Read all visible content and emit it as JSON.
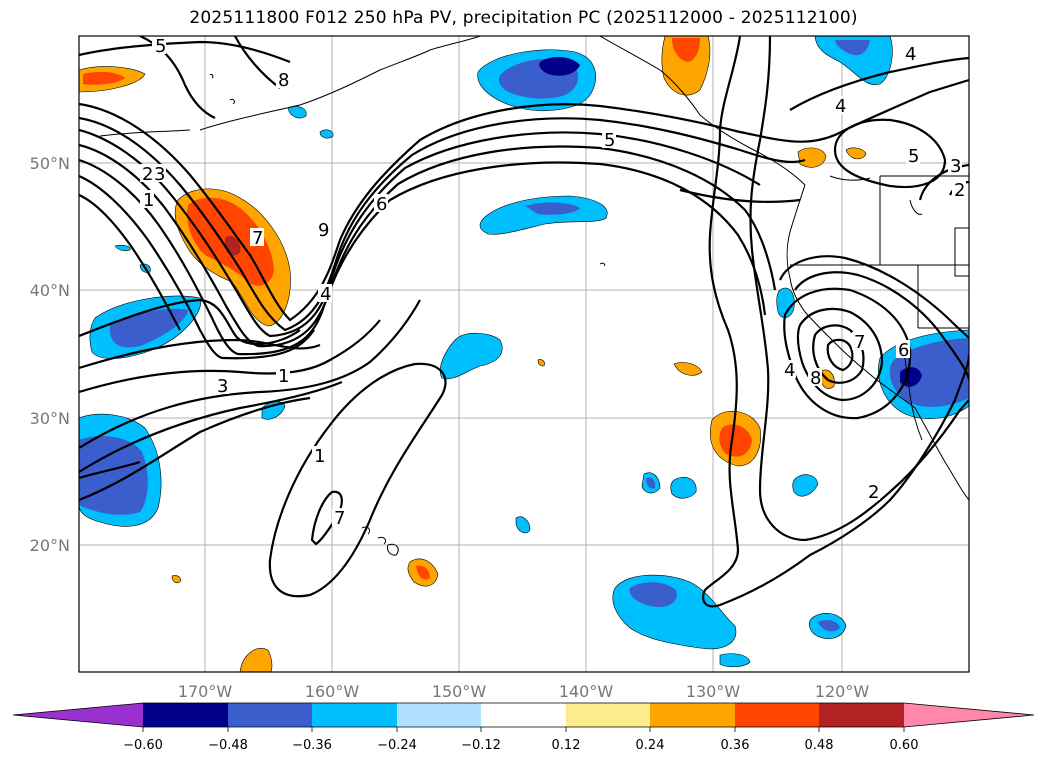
{
  "title": "2025111800 F012 250 hPa PV, precipitation PC (2025112000 - 2025112100)",
  "map": {
    "lat_labels": [
      "50°N",
      "40°N",
      "30°N",
      "20°N"
    ],
    "lon_labels": [
      "170°W",
      "160°W",
      "150°W",
      "140°W",
      "130°W",
      "120°W"
    ],
    "pv_contour_labels": [
      "5",
      "8",
      "3",
      "2",
      "1",
      "9",
      "6",
      "4",
      "3",
      "1",
      "1",
      "5",
      "4",
      "4",
      "5",
      "3",
      "2",
      "7",
      "4",
      "8",
      "6",
      "2",
      "7",
      "7"
    ]
  },
  "colorbar": {
    "labels": [
      "−0.60",
      "−0.48",
      "−0.36",
      "−0.24",
      "−0.12",
      "0.12",
      "0.24",
      "0.36",
      "0.48",
      "0.60"
    ],
    "colors": [
      "#9b30d0",
      "#00008b",
      "#3a5fcd",
      "#00bfff",
      "#b0e2ff",
      "#ffffff",
      "#fdec8d",
      "#ffa500",
      "#ff4500",
      "#b22222",
      "#ff88aa"
    ]
  },
  "colors": {
    "blue_dark": "#00008b",
    "blue_mid": "#3a5fcd",
    "blue_light": "#00bfff",
    "orange": "#ffa500",
    "orange_red": "#ff4500",
    "grid": "#b0b0b0"
  }
}
